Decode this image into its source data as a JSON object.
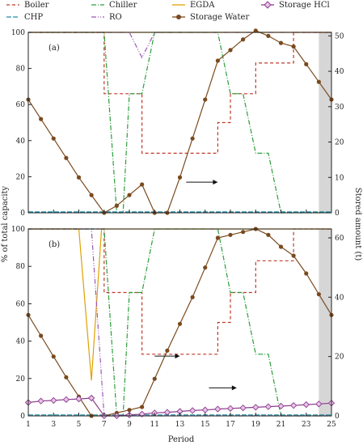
{
  "chart_data": {
    "type": "line",
    "xlabel": "Period",
    "ylabel_left": "% of total capacity",
    "ylabel_right": "Stored amount (t)",
    "x_ticks": [
      1,
      3,
      5,
      7,
      9,
      11,
      13,
      15,
      17,
      19,
      21,
      23,
      25
    ],
    "x_range": [
      1,
      25
    ],
    "shaded_period": [
      24,
      25
    ],
    "legend": [
      {
        "name": "Boiler",
        "color": "#c0392b",
        "dash": "4,3"
      },
      {
        "name": "Chiller",
        "color": "#2e9e3c",
        "dash": "6,2,1,2"
      },
      {
        "name": "EGDA",
        "color": "#e0a000",
        "dash": ""
      },
      {
        "name": "Storage HCl",
        "color": "#8e3a8e",
        "dash": "",
        "marker": "diamond"
      },
      {
        "name": "CHP",
        "color": "#1f8fa8",
        "dash": "6,2"
      },
      {
        "name": "RO",
        "color": "#9b59b6",
        "dash": "6,2,1,2,1,2"
      },
      {
        "name": "Storage Water",
        "color": "#7a4a1e",
        "dash": "",
        "marker": "circle"
      }
    ],
    "panels": [
      {
        "label": "(a)",
        "ylim_left": [
          0,
          100
        ],
        "yticks_left": [
          0,
          20,
          40,
          60,
          80,
          100
        ],
        "ylim_right": [
          0,
          51
        ],
        "yticks_right": [
          0,
          10,
          20,
          30,
          40,
          50
        ],
        "series": [
          {
            "name": "Boiler",
            "axis": "left",
            "step": true,
            "x": [
              1,
              2,
              3,
              4,
              5,
              6,
              7,
              8,
              9,
              10,
              11,
              12,
              13,
              14,
              15,
              16,
              17,
              18,
              19,
              20,
              21,
              22,
              23,
              24,
              25
            ],
            "y": [
              100,
              100,
              100,
              100,
              100,
              100,
              66,
              66,
              66,
              33,
              33,
              33,
              33,
              33,
              33,
              50,
              66,
              66,
              83,
              83,
              83,
              100,
              100,
              100,
              100
            ]
          },
          {
            "name": "Chiller",
            "axis": "left",
            "x": [
              1,
              7,
              8,
              8.5,
              9,
              10,
              11,
              12,
              13,
              14,
              15,
              16,
              17,
              18,
              19,
              20,
              21,
              22,
              25
            ],
            "y": [
              100,
              100,
              0,
              0,
              66,
              66,
              100,
              100,
              100,
              100,
              100,
              100,
              66,
              66,
              33,
              33,
              0,
              0,
              0
            ]
          },
          {
            "name": "EGDA",
            "axis": "left",
            "x": [
              1,
              25
            ],
            "y": [
              100,
              100
            ]
          },
          {
            "name": "CHP",
            "axis": "left",
            "x": [
              1,
              25
            ],
            "y": [
              0.5,
              0.5
            ]
          },
          {
            "name": "RO",
            "axis": "left",
            "x": [
              1,
              9,
              10,
              11,
              25
            ],
            "y": [
              100,
              100,
              86,
              100,
              100
            ]
          },
          {
            "name": "Storage Water",
            "axis": "right",
            "marker": true,
            "x": [
              1,
              2,
              3,
              4,
              5,
              6,
              7,
              8,
              9,
              10,
              11,
              12,
              13,
              14,
              15,
              16,
              17,
              18,
              19,
              20,
              21,
              22,
              23,
              24,
              25
            ],
            "y": [
              32,
              26.5,
              21,
              15.5,
              10,
              5,
              0,
              2,
              5,
              8,
              0,
              0,
              10,
              21,
              32,
              43,
              46,
              49,
              51.5,
              50,
              48,
              47,
              42,
              37,
              32
            ]
          }
        ],
        "annotation_arrow": {
          "x_from": 13.5,
          "x_to": 16,
          "y_left": 17
        }
      },
      {
        "label": "(b)",
        "ylim_left": [
          0,
          100
        ],
        "yticks_left": [
          0,
          20,
          40,
          60,
          80,
          100
        ],
        "ylim_right": [
          0,
          63
        ],
        "yticks_right": [
          0,
          20,
          40,
          60
        ],
        "series": [
          {
            "name": "Boiler",
            "axis": "left",
            "step": true,
            "x": [
              1,
              2,
              3,
              4,
              5,
              6,
              7,
              8,
              9,
              10,
              11,
              12,
              13,
              14,
              15,
              16,
              17,
              18,
              19,
              20,
              21,
              22,
              23,
              24,
              25
            ],
            "y": [
              100,
              100,
              100,
              100,
              100,
              100,
              66,
              66,
              66,
              33,
              33,
              33,
              33,
              33,
              33,
              50,
              66,
              66,
              83,
              83,
              83,
              100,
              100,
              100,
              100
            ]
          },
          {
            "name": "Chiller",
            "axis": "left",
            "x": [
              1,
              7,
              8,
              8.5,
              9,
              10,
              11,
              12,
              13,
              14,
              15,
              16,
              17,
              18,
              19,
              20,
              21,
              22,
              25
            ],
            "y": [
              100,
              100,
              0,
              0,
              66,
              66,
              100,
              100,
              100,
              100,
              100,
              100,
              66,
              66,
              33,
              33,
              0,
              0,
              0
            ]
          },
          {
            "name": "EGDA",
            "axis": "left",
            "x": [
              1,
              5,
              6,
              6.8,
              7,
              25
            ],
            "y": [
              100,
              100,
              19,
              100,
              100,
              100
            ]
          },
          {
            "name": "CHP",
            "axis": "left",
            "x": [
              1,
              25
            ],
            "y": [
              0.5,
              0.5
            ]
          },
          {
            "name": "RO",
            "axis": "left",
            "x": [
              1,
              5,
              6,
              7,
              8,
              25
            ],
            "y": [
              100,
              100,
              100,
              0,
              0,
              0
            ]
          },
          {
            "name": "Storage Water",
            "axis": "right",
            "marker": true,
            "x": [
              1,
              2,
              3,
              4,
              5,
              6,
              7,
              8,
              9,
              10,
              11,
              12,
              13,
              14,
              15,
              16,
              17,
              18,
              19,
              20,
              21,
              22,
              23,
              24,
              25
            ],
            "y": [
              34,
              27,
              20,
              13,
              6.5,
              0,
              0,
              1,
              2,
              3,
              12.5,
              22,
              31,
              40,
              50,
              60,
              61,
              62,
              63,
              61,
              57,
              54,
              48,
              41,
              34
            ]
          },
          {
            "name": "Storage HCl",
            "axis": "right",
            "marker": true,
            "x": [
              1,
              2,
              3,
              4,
              5,
              6,
              7,
              8,
              9,
              10,
              11,
              12,
              13,
              14,
              15,
              16,
              17,
              18,
              19,
              20,
              21,
              22,
              23,
              24,
              25
            ],
            "y": [
              4.5,
              5,
              5.2,
              5.5,
              5.7,
              6,
              0,
              0,
              0.3,
              0.6,
              1,
              1.2,
              1.5,
              1.8,
              2,
              2.3,
              2.5,
              2.7,
              2.9,
              3.1,
              3.3,
              3.5,
              3.8,
              4,
              4.3
            ]
          }
        ],
        "annotation_arrows": [
          {
            "x_from": 11,
            "x_to": 13,
            "y_left": 32
          },
          {
            "x_from": 15.3,
            "x_to": 17.5,
            "y_left": 15
          }
        ]
      }
    ]
  }
}
